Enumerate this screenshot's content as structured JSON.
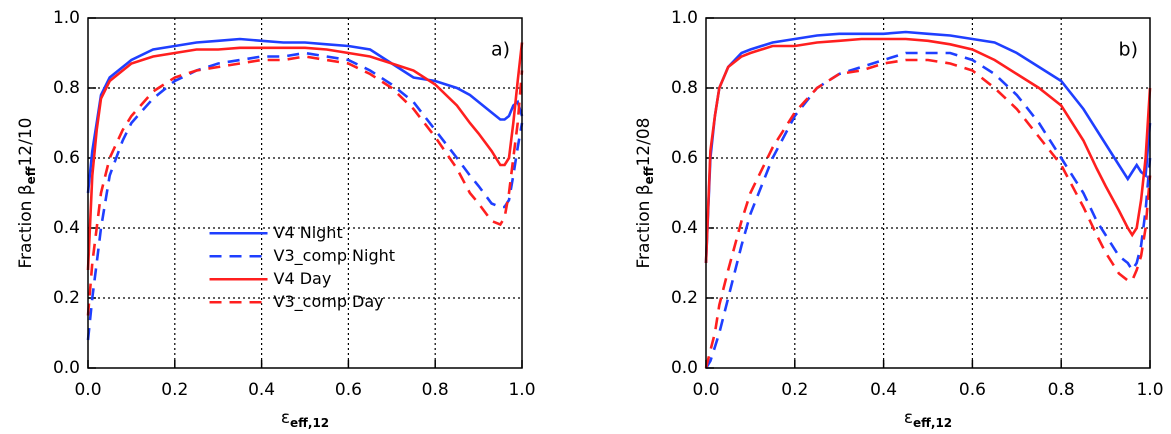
{
  "chart_data": [
    {
      "type": "line",
      "panel_label": "a)",
      "ylabel_parts": [
        "Fraction β",
        "eff",
        "12/10"
      ],
      "xlabel_parts": [
        "ε",
        "eff,12"
      ],
      "x": [
        0,
        0.01,
        0.02,
        0.03,
        0.05,
        0.08,
        0.1,
        0.15,
        0.2,
        0.25,
        0.3,
        0.35,
        0.4,
        0.45,
        0.5,
        0.55,
        0.6,
        0.65,
        0.7,
        0.75,
        0.8,
        0.85,
        0.88,
        0.9,
        0.93,
        0.95,
        0.96,
        0.97,
        0.98,
        0.99,
        1.0
      ],
      "series": [
        {
          "name": "V4 Night",
          "color": "#1f3fff",
          "dashed": false,
          "values": [
            0.5,
            0.62,
            0.7,
            0.78,
            0.83,
            0.86,
            0.88,
            0.91,
            0.92,
            0.93,
            0.935,
            0.94,
            0.935,
            0.93,
            0.93,
            0.925,
            0.92,
            0.91,
            0.87,
            0.83,
            0.82,
            0.8,
            0.78,
            0.76,
            0.73,
            0.71,
            0.71,
            0.72,
            0.75,
            0.76,
            0.72
          ]
        },
        {
          "name": "V3_comp Night",
          "color": "#1f3fff",
          "dashed": true,
          "values": [
            0.08,
            0.2,
            0.3,
            0.4,
            0.55,
            0.65,
            0.7,
            0.77,
            0.82,
            0.85,
            0.87,
            0.88,
            0.89,
            0.89,
            0.9,
            0.89,
            0.88,
            0.85,
            0.81,
            0.76,
            0.68,
            0.6,
            0.55,
            0.52,
            0.47,
            0.46,
            0.46,
            0.48,
            0.55,
            0.63,
            0.7
          ]
        },
        {
          "name": "V4 Day",
          "color": "#ff1f1f",
          "dashed": false,
          "values": [
            0.28,
            0.55,
            0.68,
            0.77,
            0.82,
            0.85,
            0.87,
            0.89,
            0.9,
            0.91,
            0.91,
            0.915,
            0.915,
            0.915,
            0.915,
            0.91,
            0.9,
            0.89,
            0.87,
            0.85,
            0.81,
            0.75,
            0.7,
            0.67,
            0.62,
            0.58,
            0.58,
            0.6,
            0.7,
            0.82,
            0.93
          ]
        },
        {
          "name": "V3_comp Day",
          "color": "#ff1f1f",
          "dashed": true,
          "values": [
            0.15,
            0.3,
            0.4,
            0.5,
            0.6,
            0.68,
            0.72,
            0.79,
            0.83,
            0.85,
            0.86,
            0.87,
            0.88,
            0.88,
            0.89,
            0.88,
            0.87,
            0.84,
            0.8,
            0.74,
            0.66,
            0.57,
            0.5,
            0.47,
            0.42,
            0.41,
            0.43,
            0.5,
            0.6,
            0.7,
            0.85
          ]
        }
      ],
      "xlim": [
        0,
        1
      ],
      "ylim": [
        0,
        1
      ],
      "xticks": [
        {
          "value": 0,
          "label": "0.0"
        },
        {
          "value": 0.2,
          "label": "0.2"
        },
        {
          "value": 0.4,
          "label": "0.4"
        },
        {
          "value": 0.6,
          "label": "0.6"
        },
        {
          "value": 0.8,
          "label": "0.8"
        },
        {
          "value": 1,
          "label": "1.0"
        }
      ],
      "yticks": [
        {
          "value": 0,
          "label": "0.0"
        },
        {
          "value": 0.2,
          "label": "0.2"
        },
        {
          "value": 0.4,
          "label": "0.4"
        },
        {
          "value": 0.6,
          "label": "0.6"
        },
        {
          "value": 0.8,
          "label": "0.8"
        },
        {
          "value": 1,
          "label": "1.0"
        }
      ],
      "grid": true,
      "legend": "center-left"
    },
    {
      "type": "line",
      "panel_label": "b)",
      "ylabel_parts": [
        "Fraction β",
        "eff",
        "12/08"
      ],
      "xlabel_parts": [
        "ε",
        "eff,12"
      ],
      "x": [
        0,
        0.01,
        0.02,
        0.03,
        0.05,
        0.08,
        0.1,
        0.15,
        0.2,
        0.25,
        0.3,
        0.35,
        0.4,
        0.45,
        0.5,
        0.55,
        0.6,
        0.65,
        0.7,
        0.75,
        0.8,
        0.85,
        0.88,
        0.9,
        0.93,
        0.95,
        0.96,
        0.97,
        0.98,
        0.99,
        1.0
      ],
      "series": [
        {
          "name": "V4 Night",
          "color": "#1f3fff",
          "dashed": false,
          "values": [
            0.3,
            0.6,
            0.72,
            0.8,
            0.86,
            0.9,
            0.91,
            0.93,
            0.94,
            0.95,
            0.955,
            0.955,
            0.955,
            0.96,
            0.955,
            0.95,
            0.94,
            0.93,
            0.9,
            0.86,
            0.82,
            0.74,
            0.68,
            0.64,
            0.58,
            0.54,
            0.56,
            0.58,
            0.56,
            0.55,
            0.7
          ]
        },
        {
          "name": "V3_comp Night",
          "color": "#1f3fff",
          "dashed": true,
          "values": [
            0.0,
            0.02,
            0.06,
            0.1,
            0.2,
            0.35,
            0.44,
            0.6,
            0.72,
            0.8,
            0.84,
            0.86,
            0.88,
            0.9,
            0.9,
            0.9,
            0.88,
            0.84,
            0.78,
            0.7,
            0.6,
            0.5,
            0.42,
            0.38,
            0.32,
            0.3,
            0.28,
            0.3,
            0.35,
            0.45,
            0.6
          ]
        },
        {
          "name": "V4 Day",
          "color": "#ff1f1f",
          "dashed": false,
          "values": [
            0.3,
            0.62,
            0.72,
            0.8,
            0.86,
            0.89,
            0.9,
            0.92,
            0.92,
            0.93,
            0.935,
            0.94,
            0.94,
            0.94,
            0.935,
            0.925,
            0.91,
            0.88,
            0.84,
            0.8,
            0.75,
            0.65,
            0.57,
            0.52,
            0.45,
            0.4,
            0.38,
            0.4,
            0.48,
            0.6,
            0.8
          ]
        },
        {
          "name": "V3_comp Day",
          "color": "#ff1f1f",
          "dashed": true,
          "values": [
            0.0,
            0.05,
            0.1,
            0.18,
            0.28,
            0.42,
            0.5,
            0.63,
            0.73,
            0.8,
            0.84,
            0.85,
            0.87,
            0.88,
            0.88,
            0.87,
            0.85,
            0.8,
            0.74,
            0.66,
            0.58,
            0.46,
            0.38,
            0.33,
            0.27,
            0.25,
            0.25,
            0.28,
            0.32,
            0.4,
            0.55
          ]
        }
      ],
      "xlim": [
        0,
        1
      ],
      "ylim": [
        0,
        1
      ],
      "xticks": [
        {
          "value": 0,
          "label": "0.0"
        },
        {
          "value": 0.2,
          "label": "0.2"
        },
        {
          "value": 0.4,
          "label": "0.4"
        },
        {
          "value": 0.6,
          "label": "0.6"
        },
        {
          "value": 0.8,
          "label": "0.8"
        },
        {
          "value": 1,
          "label": "1.0"
        }
      ],
      "yticks": [
        {
          "value": 0,
          "label": "0.0"
        },
        {
          "value": 0.2,
          "label": "0.2"
        },
        {
          "value": 0.4,
          "label": "0.4"
        },
        {
          "value": 0.6,
          "label": "0.6"
        },
        {
          "value": 0.8,
          "label": "0.8"
        },
        {
          "value": 1,
          "label": "1.0"
        }
      ],
      "grid": true,
      "legend": null
    }
  ]
}
